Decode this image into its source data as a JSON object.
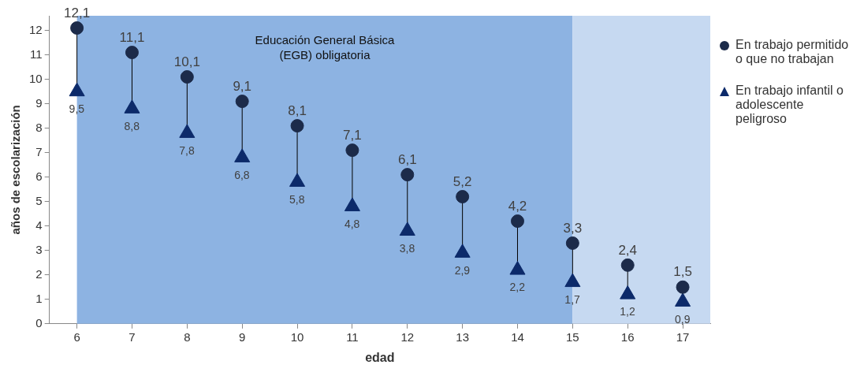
{
  "chart_data": {
    "type": "scatter",
    "xlabel": "edad",
    "ylabel": "años de escolarización",
    "x": [
      6,
      7,
      8,
      9,
      10,
      11,
      12,
      13,
      14,
      15,
      16,
      17
    ],
    "series": [
      {
        "name": "En trabajo permitido o que no trabajan",
        "color": "#1c2b4a",
        "marker": "circle",
        "values": [
          12.1,
          11.1,
          10.1,
          9.1,
          8.1,
          7.1,
          6.1,
          5.2,
          4.2,
          3.3,
          2.4,
          1.5
        ],
        "value_labels": [
          "12,1",
          "11,1",
          "10,1",
          "9,1",
          "8,1",
          "7,1",
          "6,1",
          "5,2",
          "4,2",
          "3,3",
          "2,4",
          "1,5"
        ]
      },
      {
        "name": "En trabajo infantil o adolescente peligroso",
        "color": "#0c2a6a",
        "marker": "triangle",
        "values": [
          9.5,
          8.8,
          7.8,
          6.8,
          5.8,
          4.8,
          3.8,
          2.9,
          2.2,
          1.7,
          1.2,
          0.9
        ],
        "value_labels": [
          "9,5",
          "8,8",
          "7,8",
          "6,8",
          "5,8",
          "4,8",
          "3,8",
          "2,9",
          "2,2",
          "1,7",
          "1,2",
          "0,9"
        ]
      }
    ],
    "xlim": [
      5.5,
      17.5
    ],
    "xticks": [
      6,
      7,
      8,
      9,
      10,
      11,
      12,
      13,
      14,
      15,
      16,
      17
    ],
    "ylim": [
      0,
      12.6
    ],
    "yticks": [
      0,
      1,
      2,
      3,
      4,
      5,
      6,
      7,
      8,
      9,
      10,
      11,
      12
    ],
    "bands": [
      {
        "axis": "x",
        "from": 6,
        "to": 15,
        "color": "#8db3e2",
        "label": "Educación General Básica (EGB) obligatoria"
      },
      {
        "axis": "x",
        "from": 15,
        "to": 17.5,
        "color": "#c6d9f1"
      }
    ],
    "grid": false,
    "legend": "right"
  }
}
